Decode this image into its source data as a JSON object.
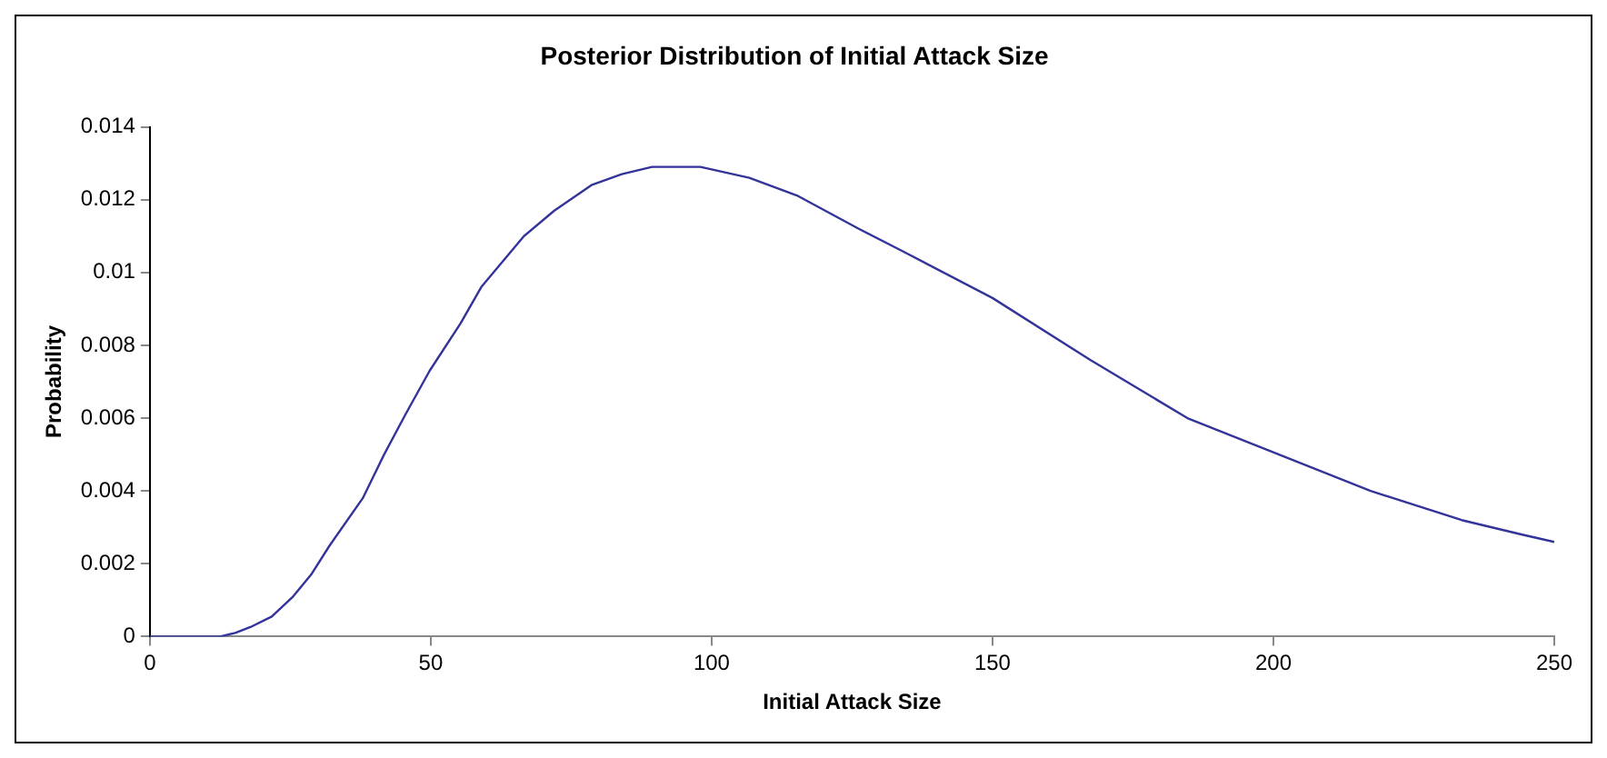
{
  "chart_data": {
    "type": "line",
    "title": "Posterior Distribution of Initial Attack Size",
    "xlabel": "Initial Attack Size",
    "ylabel": "Probability",
    "series": [
      {
        "color": "#333399",
        "x": [
          0,
          12.5,
          15.2,
          17.9,
          21.7,
          25.5,
          28.7,
          32,
          37.9,
          41.7,
          45.5,
          49.8,
          55.3,
          59,
          66.6,
          72,
          78.6,
          84,
          89.4,
          98,
          106.7,
          115.4,
          126.2,
          133.8,
          150,
          167.4,
          184.7,
          201,
          217.3,
          233.5,
          244.3,
          250
        ],
        "values": [
          0,
          0,
          0.0001,
          0.00026,
          0.00055,
          0.0011,
          0.0017,
          0.0025,
          0.0038,
          0.005,
          0.0061,
          0.0073,
          0.0086,
          0.0096,
          0.011,
          0.0117,
          0.0124,
          0.0127,
          0.0129,
          0.0129,
          0.0126,
          0.0121,
          0.0112,
          0.0106,
          0.0093,
          0.0076,
          0.006,
          0.005,
          0.004,
          0.0032,
          0.0028,
          0.0026
        ]
      }
    ],
    "xlim": [
      0,
      250
    ],
    "xticks": [
      0,
      50,
      100,
      150,
      200,
      250
    ],
    "ylim": [
      0,
      0.014
    ],
    "yticks": [
      0,
      0.002,
      0.004,
      0.006,
      0.008,
      0.01,
      0.012,
      0.014
    ],
    "grid": false,
    "legend": false,
    "marker": "none",
    "line_style": "solid"
  }
}
